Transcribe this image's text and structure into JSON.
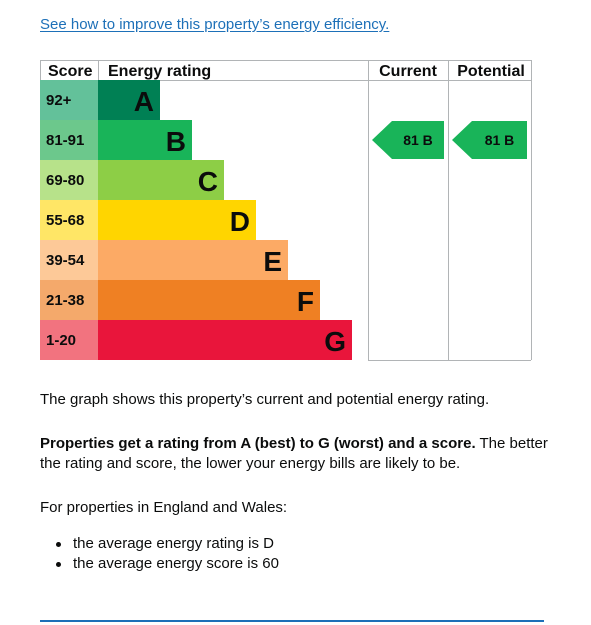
{
  "link": {
    "text": "See how to improve this property’s energy efficiency."
  },
  "chart_data": {
    "type": "bar",
    "headers": {
      "score": "Score",
      "rating": "Energy rating",
      "current": "Current",
      "potential": "Potential"
    },
    "bands": [
      {
        "score": "92+",
        "letter": "A",
        "color": "#008054",
        "score_bg": "#63c19a"
      },
      {
        "score": "81-91",
        "letter": "B",
        "color": "#19b459",
        "score_bg": "#6cc88c"
      },
      {
        "score": "69-80",
        "letter": "C",
        "color": "#8dce46",
        "score_bg": "#b7e28a"
      },
      {
        "score": "55-68",
        "letter": "D",
        "color": "#ffd500",
        "score_bg": "#ffe666"
      },
      {
        "score": "39-54",
        "letter": "E",
        "color": "#fcaa65",
        "score_bg": "#fdc998"
      },
      {
        "score": "21-38",
        "letter": "F",
        "color": "#ef8023",
        "score_bg": "#f4a96b"
      },
      {
        "score": "1-20",
        "letter": "G",
        "color": "#e9153b",
        "score_bg": "#f2737f"
      }
    ],
    "current": {
      "label": "81 B",
      "band": "B",
      "color": "#19b459"
    },
    "potential": {
      "label": "81 B",
      "band": "B",
      "color": "#19b459"
    }
  },
  "text": {
    "graph_note": "The graph shows this property’s current and potential energy rating.",
    "rating_bold": "Properties get a rating from A (best) to G (worst) and a score.",
    "rating_rest": " The better the rating and score, the lower your energy bills are likely to be.",
    "region_intro": "For properties in England and Wales:",
    "bullets": [
      "the average energy rating is D",
      "the average energy score is 60"
    ]
  }
}
